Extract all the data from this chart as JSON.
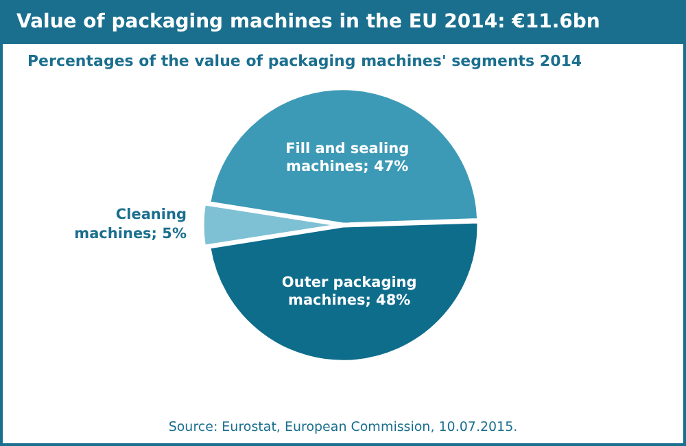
{
  "chart_data": {
    "type": "pie",
    "title": "Value of packaging machines in the EU 2014: €11.6bn",
    "subtitle": "Percentages of the value of packaging machines' segments 2014",
    "categories": [
      "Fill and sealing machines",
      "Outer packaging machines",
      "Cleaning machines"
    ],
    "values": [
      47,
      48,
      5
    ],
    "colors": [
      "#3d9ab6",
      "#0f6d8c",
      "#7fc1d4"
    ],
    "value_labels": [
      "47%",
      "48%",
      "5%"
    ],
    "annotations": [
      "Source: Eurostat, European Commission, 10.07.2015."
    ],
    "legend": false
  }
}
